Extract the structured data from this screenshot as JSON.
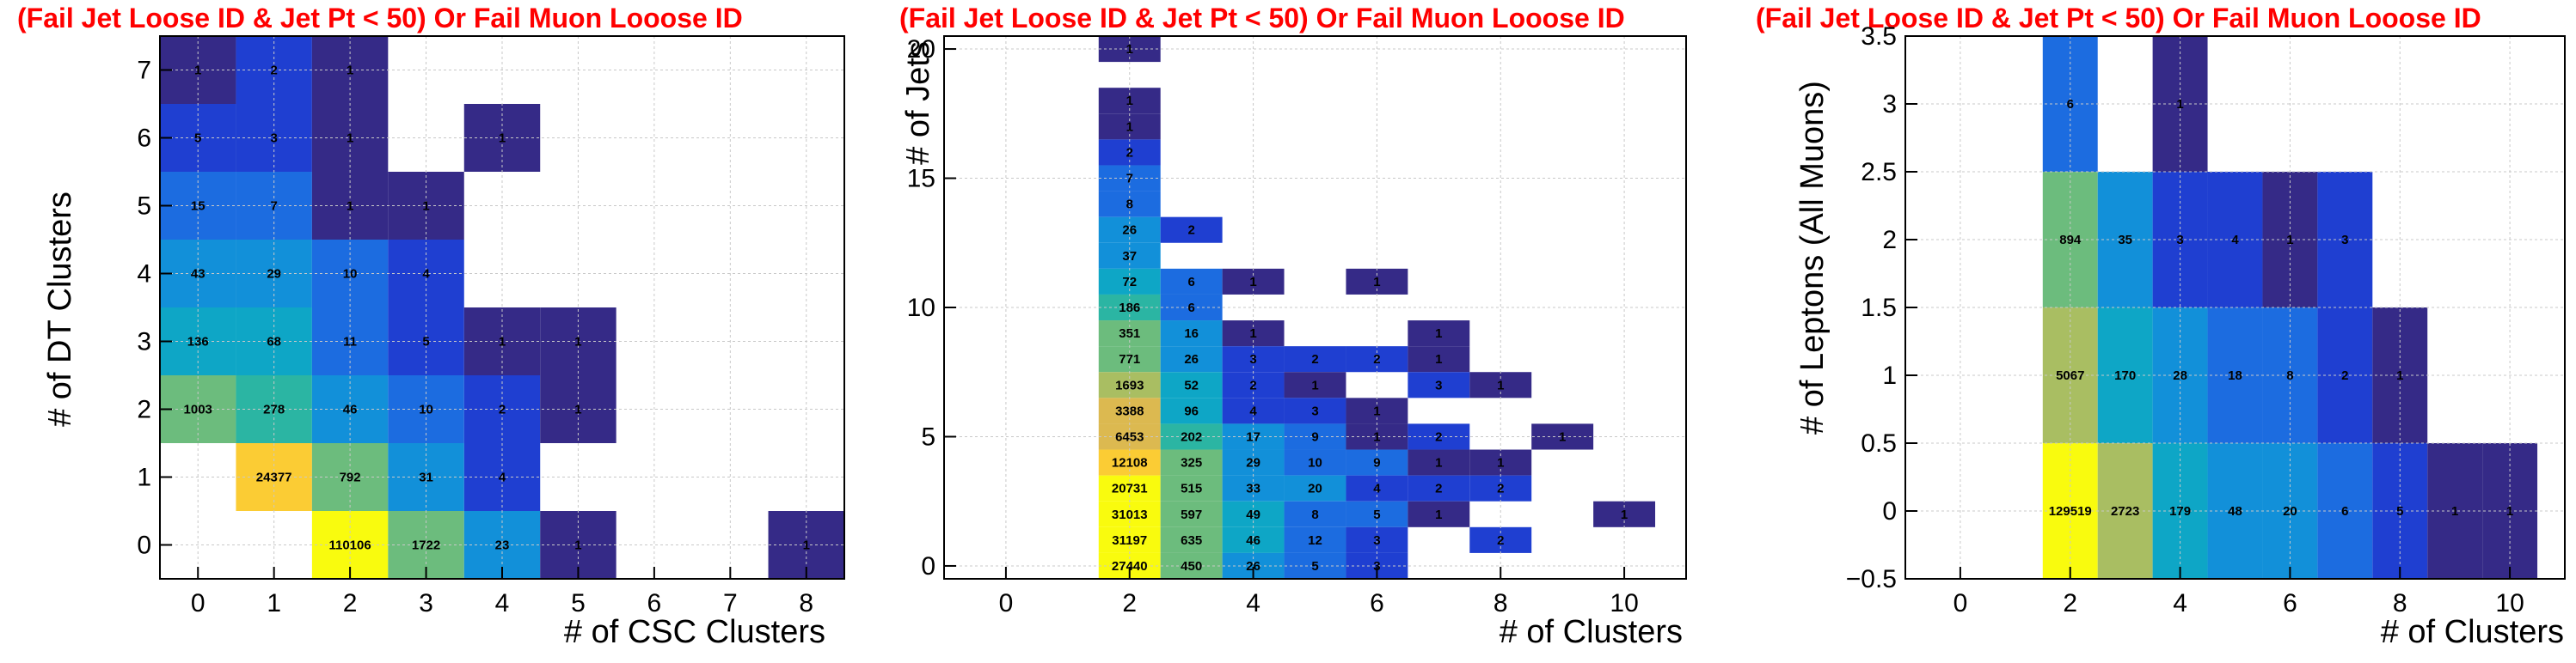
{
  "palette": [
    "#352a87",
    "#1f3fd1",
    "#1c6ce0",
    "#1290d9",
    "#0ea6c6",
    "#2bb5a3",
    "#6cbc7d",
    "#a9be62",
    "#dcb950",
    "#fbcc34",
    "#f9fb0e"
  ],
  "chart_data": [
    {
      "type": "heatmap",
      "title": "(Fail Jet Loose ID & Jet Pt < 50) Or Fail Muon Looose ID",
      "xlabel": "# of CSC Clusters",
      "ylabel": "# of DT Clusters",
      "xlim": [
        -0.5,
        8.5
      ],
      "ylim": [
        -0.5,
        7.5
      ],
      "xticks": [
        "0",
        "1",
        "2",
        "3",
        "4",
        "5",
        "6",
        "7",
        "8"
      ],
      "yticks": [
        "0",
        "1",
        "2",
        "3",
        "4",
        "5",
        "6",
        "7"
      ],
      "grid": true,
      "cells": [
        {
          "x": 2,
          "y": 0,
          "v": 110106
        },
        {
          "x": 3,
          "y": 0,
          "v": 1722
        },
        {
          "x": 4,
          "y": 0,
          "v": 23
        },
        {
          "x": 5,
          "y": 0,
          "v": 1
        },
        {
          "x": 8,
          "y": 0,
          "v": 1
        },
        {
          "x": 1,
          "y": 1,
          "v": 24377
        },
        {
          "x": 2,
          "y": 1,
          "v": 792
        },
        {
          "x": 3,
          "y": 1,
          "v": 31
        },
        {
          "x": 4,
          "y": 1,
          "v": 4
        },
        {
          "x": 0,
          "y": 2,
          "v": 1003
        },
        {
          "x": 1,
          "y": 2,
          "v": 278
        },
        {
          "x": 2,
          "y": 2,
          "v": 46
        },
        {
          "x": 3,
          "y": 2,
          "v": 10
        },
        {
          "x": 4,
          "y": 2,
          "v": 2
        },
        {
          "x": 5,
          "y": 2,
          "v": 1
        },
        {
          "x": 0,
          "y": 3,
          "v": 136
        },
        {
          "x": 1,
          "y": 3,
          "v": 68
        },
        {
          "x": 2,
          "y": 3,
          "v": 11
        },
        {
          "x": 3,
          "y": 3,
          "v": 5
        },
        {
          "x": 4,
          "y": 3,
          "v": 1
        },
        {
          "x": 5,
          "y": 3,
          "v": 1
        },
        {
          "x": 0,
          "y": 4,
          "v": 43
        },
        {
          "x": 1,
          "y": 4,
          "v": 29
        },
        {
          "x": 2,
          "y": 4,
          "v": 10
        },
        {
          "x": 3,
          "y": 4,
          "v": 4
        },
        {
          "x": 0,
          "y": 5,
          "v": 15
        },
        {
          "x": 1,
          "y": 5,
          "v": 7
        },
        {
          "x": 2,
          "y": 5,
          "v": 1
        },
        {
          "x": 3,
          "y": 5,
          "v": 1
        },
        {
          "x": 0,
          "y": 6,
          "v": 5
        },
        {
          "x": 1,
          "y": 6,
          "v": 3
        },
        {
          "x": 2,
          "y": 6,
          "v": 1
        },
        {
          "x": 4,
          "y": 6,
          "v": 1
        },
        {
          "x": 0,
          "y": 7,
          "v": 1
        },
        {
          "x": 1,
          "y": 7,
          "v": 2
        },
        {
          "x": 2,
          "y": 7,
          "v": 1
        }
      ]
    },
    {
      "type": "heatmap",
      "title": "(Fail Jet Loose ID & Jet Pt < 50) Or Fail Muon Looose ID",
      "xlabel": "# of Clusters",
      "ylabel": "# of Jets",
      "xlim": [
        -1,
        11
      ],
      "ylim": [
        -0.5,
        20.5
      ],
      "xticks": [
        "0",
        "2",
        "4",
        "6",
        "8",
        "10"
      ],
      "yticks": [
        "0",
        "5",
        "10",
        "15",
        "20"
      ],
      "grid": true,
      "cells": [
        {
          "x": 2,
          "y": 20,
          "v": 1
        },
        {
          "x": 2,
          "y": 18,
          "v": 1
        },
        {
          "x": 2,
          "y": 17,
          "v": 1
        },
        {
          "x": 2,
          "y": 16,
          "v": 2
        },
        {
          "x": 2,
          "y": 15,
          "v": 7
        },
        {
          "x": 2,
          "y": 14,
          "v": 8
        },
        {
          "x": 2,
          "y": 13,
          "v": 26
        },
        {
          "x": 3,
          "y": 13,
          "v": 2
        },
        {
          "x": 2,
          "y": 12,
          "v": 37
        },
        {
          "x": 2,
          "y": 11,
          "v": 72
        },
        {
          "x": 3,
          "y": 11,
          "v": 6
        },
        {
          "x": 4,
          "y": 11,
          "v": 1
        },
        {
          "x": 6,
          "y": 11,
          "v": 1
        },
        {
          "x": 2,
          "y": 10,
          "v": 186
        },
        {
          "x": 3,
          "y": 10,
          "v": 6
        },
        {
          "x": 2,
          "y": 9,
          "v": 351
        },
        {
          "x": 3,
          "y": 9,
          "v": 16
        },
        {
          "x": 4,
          "y": 9,
          "v": 1
        },
        {
          "x": 7,
          "y": 9,
          "v": 1
        },
        {
          "x": 2,
          "y": 8,
          "v": 771
        },
        {
          "x": 3,
          "y": 8,
          "v": 26
        },
        {
          "x": 4,
          "y": 8,
          "v": 3
        },
        {
          "x": 5,
          "y": 8,
          "v": 2
        },
        {
          "x": 6,
          "y": 8,
          "v": 2
        },
        {
          "x": 7,
          "y": 8,
          "v": 1
        },
        {
          "x": 2,
          "y": 7,
          "v": 1693
        },
        {
          "x": 3,
          "y": 7,
          "v": 52
        },
        {
          "x": 4,
          "y": 7,
          "v": 2
        },
        {
          "x": 5,
          "y": 7,
          "v": 1
        },
        {
          "x": 7,
          "y": 7,
          "v": 3
        },
        {
          "x": 8,
          "y": 7,
          "v": 1
        },
        {
          "x": 2,
          "y": 6,
          "v": 3388
        },
        {
          "x": 3,
          "y": 6,
          "v": 96
        },
        {
          "x": 4,
          "y": 6,
          "v": 4
        },
        {
          "x": 5,
          "y": 6,
          "v": 3
        },
        {
          "x": 6,
          "y": 6,
          "v": 1
        },
        {
          "x": 2,
          "y": 5,
          "v": 6453
        },
        {
          "x": 3,
          "y": 5,
          "v": 202
        },
        {
          "x": 4,
          "y": 5,
          "v": 17
        },
        {
          "x": 5,
          "y": 5,
          "v": 9
        },
        {
          "x": 6,
          "y": 5,
          "v": 1
        },
        {
          "x": 7,
          "y": 5,
          "v": 2
        },
        {
          "x": 9,
          "y": 5,
          "v": 1
        },
        {
          "x": 2,
          "y": 4,
          "v": 12108
        },
        {
          "x": 3,
          "y": 4,
          "v": 325
        },
        {
          "x": 4,
          "y": 4,
          "v": 29
        },
        {
          "x": 5,
          "y": 4,
          "v": 10
        },
        {
          "x": 6,
          "y": 4,
          "v": 9
        },
        {
          "x": 7,
          "y": 4,
          "v": 1
        },
        {
          "x": 8,
          "y": 4,
          "v": 1
        },
        {
          "x": 2,
          "y": 3,
          "v": 20731
        },
        {
          "x": 3,
          "y": 3,
          "v": 515
        },
        {
          "x": 4,
          "y": 3,
          "v": 33
        },
        {
          "x": 5,
          "y": 3,
          "v": 20
        },
        {
          "x": 6,
          "y": 3,
          "v": 4
        },
        {
          "x": 7,
          "y": 3,
          "v": 2
        },
        {
          "x": 8,
          "y": 3,
          "v": 2
        },
        {
          "x": 2,
          "y": 2,
          "v": 31013
        },
        {
          "x": 3,
          "y": 2,
          "v": 597
        },
        {
          "x": 4,
          "y": 2,
          "v": 49
        },
        {
          "x": 5,
          "y": 2,
          "v": 8
        },
        {
          "x": 6,
          "y": 2,
          "v": 5
        },
        {
          "x": 7,
          "y": 2,
          "v": 1
        },
        {
          "x": 10,
          "y": 2,
          "v": 1
        },
        {
          "x": 2,
          "y": 1,
          "v": 31197
        },
        {
          "x": 3,
          "y": 1,
          "v": 635
        },
        {
          "x": 4,
          "y": 1,
          "v": 46
        },
        {
          "x": 5,
          "y": 1,
          "v": 12
        },
        {
          "x": 6,
          "y": 1,
          "v": 3
        },
        {
          "x": 8,
          "y": 1,
          "v": 2
        },
        {
          "x": 2,
          "y": 0,
          "v": 27440
        },
        {
          "x": 3,
          "y": 0,
          "v": 450
        },
        {
          "x": 4,
          "y": 0,
          "v": 26
        },
        {
          "x": 5,
          "y": 0,
          "v": 5
        },
        {
          "x": 6,
          "y": 0,
          "v": 3
        }
      ]
    },
    {
      "type": "heatmap",
      "title": "(Fail Jet Loose ID & Jet Pt < 50) Or Fail Muon Looose ID",
      "xlabel": "# of Clusters",
      "ylabel": "# of Leptons (All Muons)",
      "xlim": [
        -1,
        11
      ],
      "ylim": [
        -0.5,
        3.5
      ],
      "xticks": [
        "0",
        "2",
        "4",
        "6",
        "8",
        "10"
      ],
      "yticks": [
        "−0.5",
        "0",
        "0.5",
        "1",
        "1.5",
        "2",
        "2.5",
        "3",
        "3.5"
      ],
      "grid": true,
      "cells": [
        {
          "x": 2,
          "y": 3,
          "v": 6
        },
        {
          "x": 4,
          "y": 3,
          "v": 1
        },
        {
          "x": 2,
          "y": 2,
          "v": 894
        },
        {
          "x": 3,
          "y": 2,
          "v": 35
        },
        {
          "x": 4,
          "y": 2,
          "v": 3
        },
        {
          "x": 5,
          "y": 2,
          "v": 4
        },
        {
          "x": 6,
          "y": 2,
          "v": 1
        },
        {
          "x": 7,
          "y": 2,
          "v": 3
        },
        {
          "x": 2,
          "y": 1,
          "v": 5067
        },
        {
          "x": 3,
          "y": 1,
          "v": 170
        },
        {
          "x": 4,
          "y": 1,
          "v": 28
        },
        {
          "x": 5,
          "y": 1,
          "v": 18
        },
        {
          "x": 6,
          "y": 1,
          "v": 8
        },
        {
          "x": 7,
          "y": 1,
          "v": 2
        },
        {
          "x": 8,
          "y": 1,
          "v": 1
        },
        {
          "x": 2,
          "y": 0,
          "v": 129519
        },
        {
          "x": 3,
          "y": 0,
          "v": 2723
        },
        {
          "x": 4,
          "y": 0,
          "v": 179
        },
        {
          "x": 5,
          "y": 0,
          "v": 48
        },
        {
          "x": 6,
          "y": 0,
          "v": 20
        },
        {
          "x": 7,
          "y": 0,
          "v": 6
        },
        {
          "x": 8,
          "y": 0,
          "v": 5
        },
        {
          "x": 9,
          "y": 0,
          "v": 1
        },
        {
          "x": 10,
          "y": 0,
          "v": 1
        }
      ]
    }
  ]
}
